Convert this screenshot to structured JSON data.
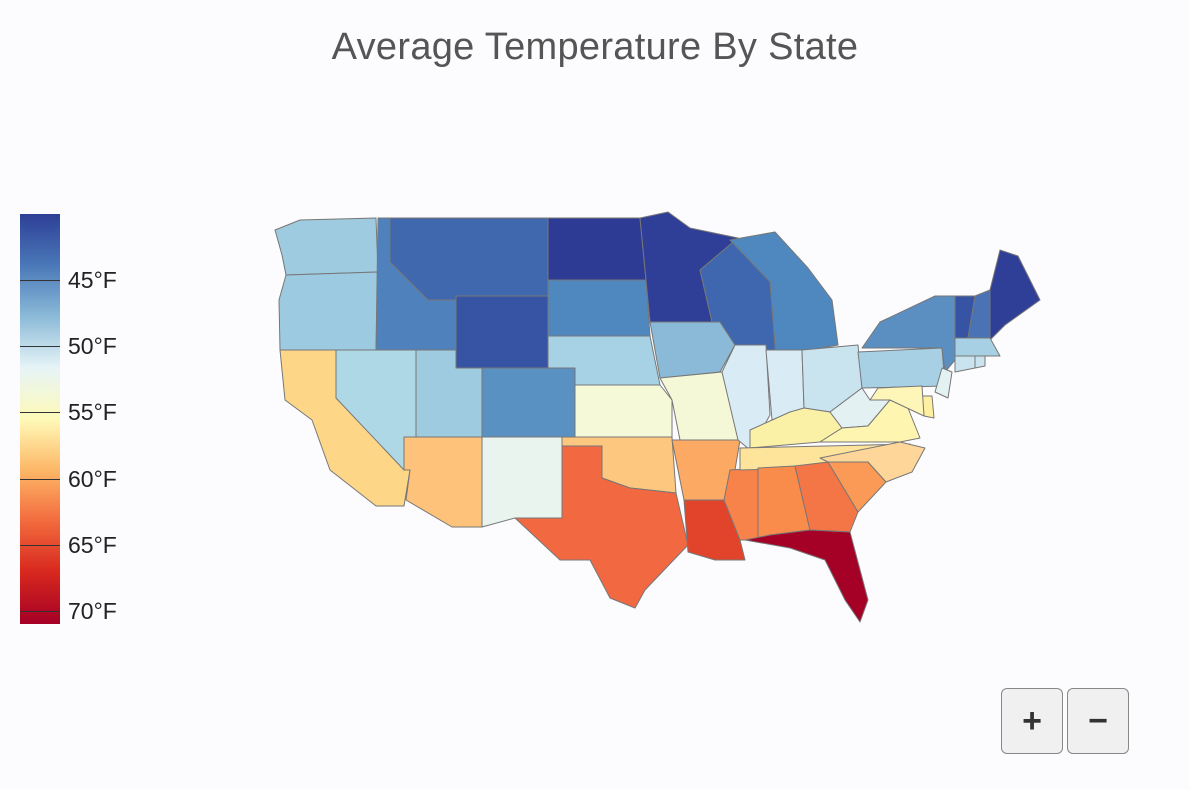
{
  "title": "Average Temperature By State",
  "legend": {
    "colors": [
      "#2e3f96",
      "#4a78b8",
      "#8bbad8",
      "#e6f4f7",
      "#fefab8",
      "#fdb767",
      "#f26a3d",
      "#d7271e",
      "#a50026"
    ],
    "range_f": [
      40,
      71
    ],
    "ticks": [
      {
        "label": "45°F",
        "value": 45
      },
      {
        "label": "50°F",
        "value": 50
      },
      {
        "label": "55°F",
        "value": 55
      },
      {
        "label": "60°F",
        "value": 60
      },
      {
        "label": "65°F",
        "value": 65
      },
      {
        "label": "70°F",
        "value": 70
      }
    ]
  },
  "states": [
    {
      "name": "WA",
      "color": "#9fcbe1"
    },
    {
      "name": "OR",
      "color": "#9ccae0"
    },
    {
      "name": "CA",
      "color": "#fdd688"
    },
    {
      "name": "ID",
      "color": "#4f81bd"
    },
    {
      "name": "NV",
      "color": "#aed8e6"
    },
    {
      "name": "MT",
      "color": "#3f68af"
    },
    {
      "name": "WY",
      "color": "#3654a3"
    },
    {
      "name": "UT",
      "color": "#9fcbe1"
    },
    {
      "name": "AZ",
      "color": "#fec27a"
    },
    {
      "name": "CO",
      "color": "#5991c2"
    },
    {
      "name": "NM",
      "color": "#eaf4ef"
    },
    {
      "name": "ND",
      "color": "#2d3b94"
    },
    {
      "name": "SD",
      "color": "#4f88bf"
    },
    {
      "name": "NE",
      "color": "#a7d1e4"
    },
    {
      "name": "KS",
      "color": "#f5f9d8"
    },
    {
      "name": "OK",
      "color": "#fdc77f"
    },
    {
      "name": "TX",
      "color": "#f26841"
    },
    {
      "name": "MN",
      "color": "#2f3f98"
    },
    {
      "name": "IA",
      "color": "#8bbad9"
    },
    {
      "name": "MO",
      "color": "#f4f8d7"
    },
    {
      "name": "AR",
      "color": "#fca964"
    },
    {
      "name": "LA",
      "color": "#e2442b"
    },
    {
      "name": "WI",
      "color": "#3e67af"
    },
    {
      "name": "IL",
      "color": "#d9ecf5"
    },
    {
      "name": "MS",
      "color": "#f7824a"
    },
    {
      "name": "MI",
      "color": "#4f88bf"
    },
    {
      "name": "IN",
      "color": "#d9ecf5"
    },
    {
      "name": "KY",
      "color": "#fbf1a6"
    },
    {
      "name": "TN",
      "color": "#fee39b"
    },
    {
      "name": "AL",
      "color": "#f98b4b"
    },
    {
      "name": "GA",
      "color": "#f47646"
    },
    {
      "name": "FL",
      "color": "#a50026"
    },
    {
      "name": "SC",
      "color": "#fb9a56"
    },
    {
      "name": "NC",
      "color": "#fed699"
    },
    {
      "name": "OH",
      "color": "#c9e3ef"
    },
    {
      "name": "WV",
      "color": "#e4f1f2"
    },
    {
      "name": "VA",
      "color": "#fef6b0"
    },
    {
      "name": "PA",
      "color": "#a8d0e4"
    },
    {
      "name": "NY",
      "color": "#5b8fc2"
    },
    {
      "name": "VT",
      "color": "#3654a3"
    },
    {
      "name": "NH",
      "color": "#4a73b5"
    },
    {
      "name": "ME",
      "color": "#2f3f98"
    },
    {
      "name": "MA",
      "color": "#a8d0e4"
    },
    {
      "name": "CT",
      "color": "#c9e3ef"
    },
    {
      "name": "RI",
      "color": "#c9e3ef"
    },
    {
      "name": "NJ",
      "color": "#e4f1f2"
    },
    {
      "name": "DE",
      "color": "#fef0a0"
    },
    {
      "name": "MD",
      "color": "#fef6b8"
    }
  ],
  "zoom": {
    "in_label": "+",
    "out_label": "−"
  }
}
